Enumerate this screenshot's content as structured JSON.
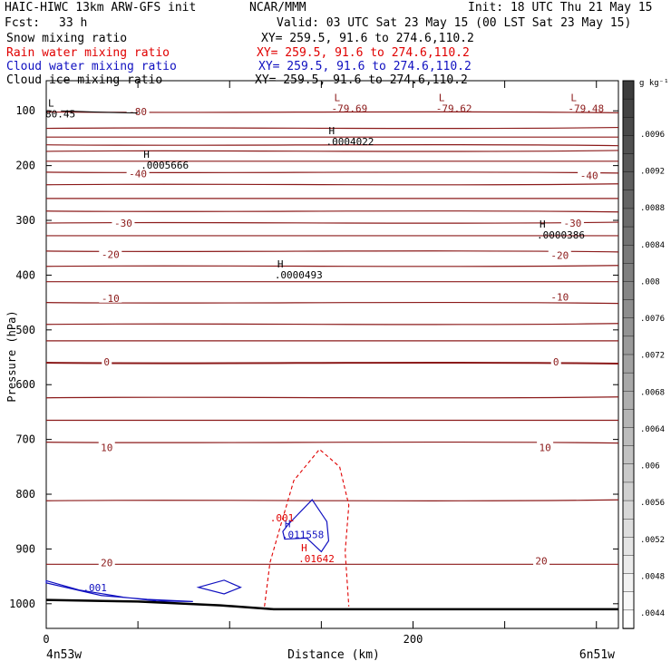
{
  "header": {
    "title": "HAIC-HIWC 13km ARW-GFS init",
    "org": "NCAR/MMM",
    "init": "Init: 18 UTC Thu 21 May 15",
    "fcst_label": "Fcst:",
    "fcst_value": "33 h",
    "valid": "Valid: 03 UTC Sat 23 May 15 (00 LST Sat 23 May 15)",
    "xy_text": "XY= 259.5, 91.6 to 274.6,110.2"
  },
  "fields": [
    {
      "name": "Snow mixing ratio",
      "color": "#000000"
    },
    {
      "name": "Rain water mixing ratio",
      "color": "#e00000"
    },
    {
      "name": "Cloud water mixing ratio",
      "color": "#1010c0"
    },
    {
      "name": "Cloud ice mixing ratio",
      "color": "#000000"
    }
  ],
  "chart_data": {
    "type": "cross-section contour",
    "ylabel": "Pressure (hPa)",
    "xlabel": "Distance (km)",
    "x_endpoints": [
      "4n53w",
      "6n51w"
    ],
    "ylim": [
      1045,
      45
    ],
    "xlim": [
      0,
      312
    ],
    "y_ticks": [
      {
        "p": 100,
        "label": "100"
      },
      {
        "p": 200,
        "label": "200"
      },
      {
        "p": 300,
        "label": "300"
      },
      {
        "p": 400,
        "label": "400"
      },
      {
        "p": 500,
        "label": "500"
      },
      {
        "p": 600,
        "label": "600"
      },
      {
        "p": 700,
        "label": "700"
      },
      {
        "p": 800,
        "label": "800"
      },
      {
        "p": 900,
        "label": "900"
      },
      {
        "p": 1000,
        "label": "1000"
      }
    ],
    "x_ticks": [
      {
        "x": 0,
        "label": "0"
      },
      {
        "x": 200,
        "label": "200"
      }
    ],
    "x_minor": [
      50,
      100,
      150,
      250,
      300
    ],
    "temperature_isotherms_p": [
      102,
      132,
      148,
      162,
      174,
      192,
      212,
      235,
      260,
      283,
      305,
      328,
      356,
      384,
      412,
      450,
      490,
      520,
      560,
      624,
      665,
      705,
      812,
      928
    ],
    "temperature_labels": [
      {
        "text": "-80",
        "x": 50,
        "p": 101
      },
      {
        "text": "-40",
        "x": 50,
        "p": 215
      },
      {
        "text": "-40",
        "x": 296,
        "p": 218
      },
      {
        "text": "-30",
        "x": 42,
        "p": 305
      },
      {
        "text": "-30",
        "x": 287,
        "p": 305
      },
      {
        "text": "-20",
        "x": 35,
        "p": 362
      },
      {
        "text": "-20",
        "x": 280,
        "p": 364
      },
      {
        "text": "-10",
        "x": 35,
        "p": 442
      },
      {
        "text": "-10",
        "x": 280,
        "p": 440
      },
      {
        "text": "0",
        "x": 33,
        "p": 558
      },
      {
        "text": "0",
        "x": 278,
        "p": 558
      },
      {
        "text": "10",
        "x": 33,
        "p": 715
      },
      {
        "text": "10",
        "x": 272,
        "p": 715
      },
      {
        "text": "20",
        "x": 33,
        "p": 925
      },
      {
        "text": "20",
        "x": 270,
        "p": 922
      }
    ],
    "extrema": [
      {
        "kind": "L",
        "x": 1,
        "p": 92,
        "value": "80.45",
        "color": "#000000"
      },
      {
        "kind": "L",
        "x": 157,
        "p": 82,
        "value": "-79.69",
        "color": "#8b1a1a"
      },
      {
        "kind": "L",
        "x": 214,
        "p": 82,
        "value": "-79.62",
        "color": "#8b1a1a"
      },
      {
        "kind": "L",
        "x": 286,
        "p": 82,
        "value": "-79.48",
        "color": "#8b1a1a"
      },
      {
        "kind": "H",
        "x": 154,
        "p": 143,
        "value": ".0004022",
        "color": "#000000"
      },
      {
        "kind": "H",
        "x": 53,
        "p": 186,
        "value": ".0005666",
        "color": "#000000"
      },
      {
        "kind": "H",
        "x": 269,
        "p": 313,
        "value": ".0000386",
        "color": "#000000"
      },
      {
        "kind": "H",
        "x": 126,
        "p": 386,
        "value": ".0000493",
        "color": "#000000"
      },
      {
        "kind": "H",
        "x": 130,
        "p": 860,
        "value": ".011558",
        "color": "#1010c0"
      },
      {
        "kind": "H",
        "x": 139,
        "p": 904,
        "value": ".01642",
        "color": "#e00000"
      }
    ],
    "contour_labels": [
      {
        "text": ".001",
        "x": 122,
        "p": 850,
        "color": "#e00000"
      },
      {
        "text": ".001",
        "x": 20,
        "p": 977,
        "color": "#1010c0"
      }
    ],
    "rain_contour": [
      [
        119,
        1005
      ],
      [
        122,
        925
      ],
      [
        128,
        855
      ],
      [
        135,
        775
      ],
      [
        149,
        718
      ],
      [
        160,
        750
      ],
      [
        165,
        820
      ],
      [
        163,
        905
      ],
      [
        165,
        1005
      ]
    ],
    "cloud_water_contour_1": [
      [
        132,
        855
      ],
      [
        145,
        810
      ],
      [
        153,
        850
      ],
      [
        154,
        885
      ],
      [
        150,
        905
      ],
      [
        142,
        880
      ],
      [
        130,
        882
      ],
      [
        129,
        868
      ]
    ],
    "cloud_water_contour_2": [
      [
        83,
        970
      ],
      [
        97,
        957
      ],
      [
        106,
        970
      ],
      [
        97,
        982
      ]
    ],
    "cloud_water_contour_3": [
      [
        0,
        958
      ],
      [
        18,
        975
      ],
      [
        42,
        988
      ],
      [
        60,
        995
      ],
      [
        80,
        996
      ],
      [
        55,
        992
      ],
      [
        30,
        985
      ],
      [
        0,
        962
      ]
    ],
    "surface": [
      [
        0,
        993
      ],
      [
        50,
        996
      ],
      [
        95,
        1003
      ],
      [
        124,
        1010
      ],
      [
        312,
        1010
      ]
    ],
    "snow_ice_contour": [
      [
        8,
        100
      ],
      [
        34,
        103
      ],
      [
        50,
        104
      ]
    ],
    "colorbar": {
      "unit": "g kg⁻¹",
      "labels": [
        ".0096",
        ".0092",
        ".0088",
        ".0084",
        ".008",
        ".0076",
        ".0072",
        ".0068",
        ".0064",
        ".006",
        ".0056",
        ".0052",
        ".0048",
        ".0044"
      ]
    }
  }
}
